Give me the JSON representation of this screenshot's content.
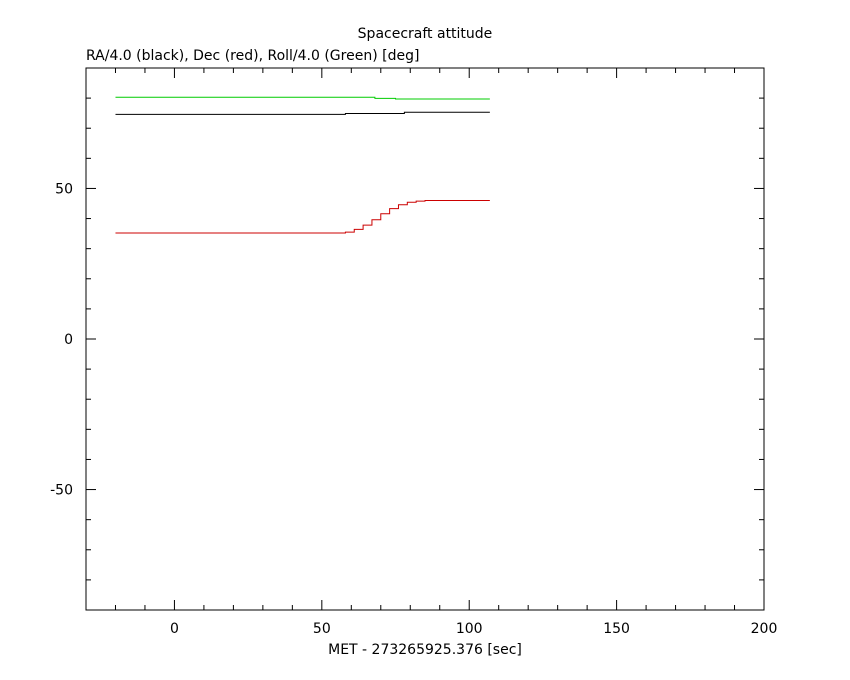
{
  "chart_data": {
    "type": "line",
    "title": "Spacecraft attitude",
    "ylabel": "RA/4.0 (black), Dec (red), Roll/4.0 (Green) [deg]",
    "xlabel": "MET - 273265925.376 [sec]",
    "xlim": [
      -30,
      200
    ],
    "ylim": [
      -90,
      90
    ],
    "xticks": [
      0,
      50,
      100,
      150,
      200
    ],
    "xtick_labels": [
      "0",
      "50",
      "100",
      "150",
      "200"
    ],
    "yticks": [
      -50,
      0,
      50
    ],
    "ytick_labels": [
      "-50",
      "0",
      "50"
    ],
    "grid": false,
    "series": [
      {
        "color": "#00cc00",
        "x": [
          -20,
          68,
          68,
          75,
          75,
          107
        ],
        "y": [
          80.3,
          80.3,
          79.9,
          79.9,
          79.7,
          79.7
        ]
      },
      {
        "color": "#000000",
        "x": [
          -20,
          58,
          58,
          78,
          78,
          107
        ],
        "y": [
          74.6,
          74.6,
          74.9,
          74.9,
          75.3,
          75.3
        ]
      },
      {
        "color": "#cc0000",
        "x": [
          -20,
          58,
          58,
          61,
          61,
          64,
          64,
          67,
          67,
          70,
          70,
          73,
          73,
          76,
          76,
          79,
          79,
          82,
          82,
          85,
          85,
          107
        ],
        "y": [
          35.2,
          35.2,
          35.5,
          35.5,
          36.4,
          36.4,
          37.8,
          37.8,
          39.6,
          39.6,
          41.6,
          41.6,
          43.3,
          43.3,
          44.6,
          44.6,
          45.4,
          45.4,
          45.8,
          45.8,
          46.0,
          46.0
        ]
      }
    ]
  }
}
